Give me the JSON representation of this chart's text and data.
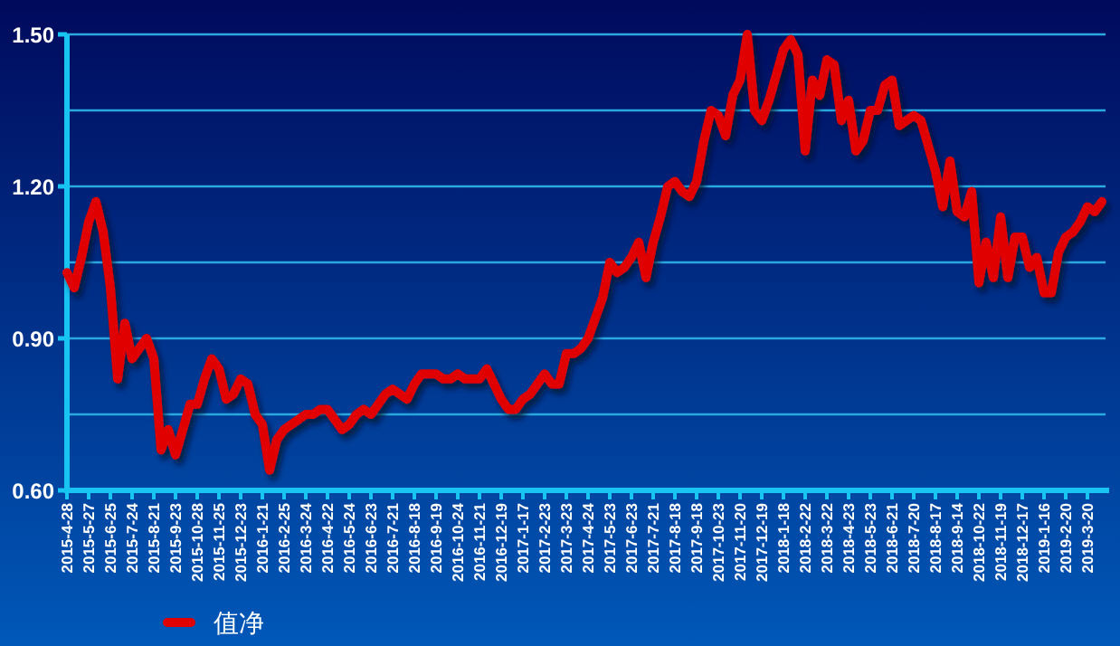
{
  "chart_data": {
    "type": "line",
    "categories": [
      "2015-4-28",
      null,
      null,
      "2015-5-27",
      null,
      null,
      "2015-6-25",
      null,
      null,
      "2015-7-24",
      null,
      null,
      "2015-8-21",
      null,
      null,
      "2015-9-23",
      null,
      null,
      "2015-10-28",
      null,
      null,
      "2015-11-25",
      null,
      null,
      "2015-12-23",
      null,
      null,
      "2016-1-21",
      null,
      null,
      "2016-2-25",
      null,
      null,
      "2016-3-24",
      null,
      null,
      "2016-4-22",
      null,
      null,
      "2016-5-24",
      null,
      null,
      "2016-6-23",
      null,
      null,
      "2016-7-21",
      null,
      null,
      "2016-8-18",
      null,
      null,
      "2016-9-19",
      null,
      null,
      "2016-10-24",
      null,
      null,
      "2016-11-21",
      null,
      null,
      "2016-12-19",
      null,
      null,
      "2017-1-17",
      null,
      null,
      "2017-2-23",
      null,
      null,
      "2017-3-23",
      null,
      null,
      "2017-4-24",
      null,
      null,
      "2017-5-23",
      null,
      null,
      "2017-6-23",
      null,
      null,
      "2017-7-21",
      null,
      null,
      "2017-8-18",
      null,
      null,
      "2017-9-18",
      null,
      null,
      "2017-10-23",
      null,
      null,
      "2017-11-20",
      null,
      null,
      "2017-12-19",
      null,
      null,
      "2018-1-18",
      null,
      null,
      "2018-2-22",
      null,
      null,
      "2018-3-22",
      null,
      null,
      "2018-4-23",
      null,
      null,
      "2018-5-23",
      null,
      null,
      "2018-6-21",
      null,
      null,
      "2018-7-20",
      null,
      null,
      "2018-8-17",
      null,
      null,
      "2018-9-14",
      null,
      null,
      "2018-10-22",
      null,
      null,
      "2018-11-19",
      null,
      null,
      "2018-12-17",
      null,
      null,
      "2019-1-16",
      null,
      null,
      "2019-2-20",
      null,
      null,
      "2019-3-20",
      null,
      null
    ],
    "series": [
      {
        "name": "值净",
        "color": "#e00000",
        "values": [
          1.03,
          1.0,
          1.06,
          1.13,
          1.17,
          1.11,
          1.0,
          0.82,
          0.93,
          0.86,
          0.88,
          0.9,
          0.86,
          0.68,
          0.72,
          0.67,
          0.72,
          0.77,
          0.77,
          0.82,
          0.86,
          0.84,
          0.78,
          0.79,
          0.82,
          0.81,
          0.75,
          0.73,
          0.64,
          0.7,
          0.72,
          0.73,
          0.74,
          0.75,
          0.75,
          0.76,
          0.76,
          0.74,
          0.72,
          0.73,
          0.75,
          0.76,
          0.75,
          0.77,
          0.79,
          0.8,
          0.79,
          0.78,
          0.81,
          0.83,
          0.83,
          0.83,
          0.82,
          0.82,
          0.83,
          0.82,
          0.82,
          0.82,
          0.84,
          0.81,
          0.78,
          0.76,
          0.76,
          0.78,
          0.79,
          0.81,
          0.83,
          0.81,
          0.81,
          0.87,
          0.87,
          0.88,
          0.9,
          0.94,
          0.98,
          1.05,
          1.03,
          1.04,
          1.06,
          1.09,
          1.02,
          1.09,
          1.14,
          1.2,
          1.21,
          1.19,
          1.18,
          1.21,
          1.29,
          1.35,
          1.34,
          1.3,
          1.38,
          1.41,
          1.5,
          1.35,
          1.33,
          1.37,
          1.42,
          1.47,
          1.49,
          1.46,
          1.27,
          1.41,
          1.38,
          1.45,
          1.44,
          1.33,
          1.37,
          1.27,
          1.29,
          1.35,
          1.35,
          1.4,
          1.41,
          1.32,
          1.33,
          1.34,
          1.33,
          1.28,
          1.23,
          1.16,
          1.25,
          1.15,
          1.14,
          1.19,
          1.01,
          1.09,
          1.02,
          1.14,
          1.02,
          1.1,
          1.1,
          1.04,
          1.06,
          0.99,
          0.99,
          1.07,
          1.1,
          1.11,
          1.13,
          1.16,
          1.15,
          1.17
        ]
      }
    ],
    "ylim": [
      0.6,
      1.5
    ],
    "yticks": [
      {
        "value": 0.6,
        "label": "0.60"
      },
      {
        "value": 0.75,
        "label": null
      },
      {
        "value": 0.9,
        "label": "0.90"
      },
      {
        "value": 1.05,
        "label": null
      },
      {
        "value": 1.2,
        "label": "1.20"
      },
      {
        "value": 1.35,
        "label": null
      },
      {
        "value": 1.5,
        "label": "1.50"
      }
    ],
    "grid": "y",
    "legend": "bottom",
    "marker": "none",
    "line_style": "solid"
  }
}
